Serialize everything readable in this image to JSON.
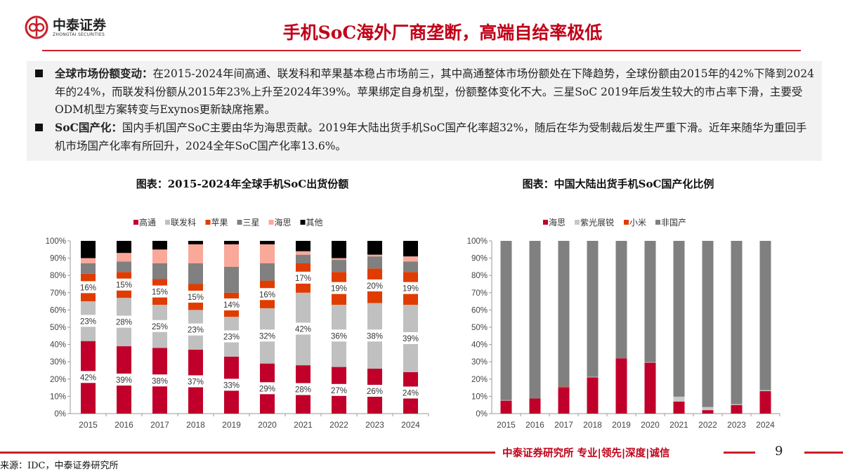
{
  "header": {
    "logo_cn": "中泰证券",
    "logo_en": "ZHONGTAI SECURITIES",
    "title": "手机SoC海外厂商垄断，高端自给率极低"
  },
  "summary": [
    {
      "label": "全球市场份额变动：",
      "text": "在2015-2024年间高通、联发科和苹果基本稳占市场前三，其中高通整体市场份额处在下降趋势，全球份额由2015年的42%下降到2024年的24%，而联发科份额从2015年23%上升至2024年39%。苹果绑定自身机型，份额整体变化不大。三星SoC 2019年后发生较大的市占率下滑，主要受ODM机型方案转变与Exynos更新缺席拖累。"
    },
    {
      "label": "SoC国产化：",
      "text": "国内手机国产SoC主要由华为海思贡献。2019年大陆出货手机SoC国产化率超32%，随后在华为受制裁后发生严重下滑。近年来随华为重回手机市场国产化率有所回升，2024全年SoC国产化率13.6%。"
    }
  ],
  "chart_data": [
    {
      "type": "bar",
      "stacked": true,
      "title": "图表：2015-2024年全球手机SoC出货份额",
      "categories": [
        "2015",
        "2016",
        "2017",
        "2018",
        "2019",
        "2020",
        "2021",
        "2022",
        "2023",
        "2024"
      ],
      "ylim": [
        0,
        100
      ],
      "yticks": [
        "0%",
        "10%",
        "20%",
        "30%",
        "40%",
        "50%",
        "60%",
        "70%",
        "80%",
        "90%",
        "100%"
      ],
      "legend_position": "top",
      "series": [
        {
          "name": "高通",
          "color": "#c0002a",
          "values": [
            42,
            39,
            38,
            37,
            33,
            29,
            28,
            27,
            26,
            24
          ],
          "labels": [
            "42%",
            "39%",
            "38%",
            "37%",
            "33%",
            "29%",
            "28%",
            "27%",
            "26%",
            "24%"
          ]
        },
        {
          "name": "联发科",
          "color": "#c0c0c0",
          "values": [
            23,
            28,
            25,
            23,
            23,
            32,
            42,
            36,
            38,
            39
          ],
          "labels": [
            "23%",
            "28%",
            "25%",
            "23%",
            "23%",
            "32%",
            "42%",
            "36%",
            "38%",
            "39%"
          ]
        },
        {
          "name": "苹果",
          "color": "#e03c00",
          "values": [
            16,
            15,
            15,
            15,
            14,
            16,
            17,
            19,
            20,
            19
          ],
          "labels": [
            "16%",
            "15%",
            "15%",
            "15%",
            "14%",
            "16%",
            "17%",
            "19%",
            "20%",
            "19%"
          ]
        },
        {
          "name": "三星",
          "color": "#808080",
          "values": [
            6,
            6,
            9,
            12,
            15,
            10,
            5,
            7,
            7,
            6
          ]
        },
        {
          "name": "海思",
          "color": "#f9a89a",
          "values": [
            3,
            5,
            8,
            11,
            13,
            11,
            2,
            1,
            1,
            3
          ]
        },
        {
          "name": "其他",
          "color": "#000000",
          "values": [
            10,
            7,
            5,
            2,
            2,
            2,
            6,
            10,
            8,
            9
          ]
        }
      ]
    },
    {
      "type": "bar",
      "stacked": true,
      "title": "图表：中国大陆出货手机SoC国产化比例",
      "categories": [
        "2015",
        "2016",
        "2017",
        "2018",
        "2019",
        "2020",
        "2021",
        "2022",
        "2023",
        "2024"
      ],
      "ylim": [
        0,
        100
      ],
      "yticks": [
        "0%",
        "10%",
        "20%",
        "30%",
        "40%",
        "50%",
        "60%",
        "70%",
        "80%",
        "90%",
        "100%"
      ],
      "legend_position": "top",
      "series": [
        {
          "name": "海思",
          "color": "#c0002a",
          "values": [
            7.5,
            8.8,
            15,
            21,
            32,
            29.5,
            7,
            2,
            5,
            13
          ]
        },
        {
          "name": "紫光展锐",
          "color": "#c8c8c8",
          "values": [
            0.3,
            0,
            0,
            0.3,
            0,
            0.3,
            2.8,
            1.8,
            0.5,
            0.6
          ]
        },
        {
          "name": "小米",
          "color": "#e03c00",
          "values": [
            0,
            0,
            0.6,
            0,
            0,
            0,
            0,
            0,
            0,
            0
          ]
        },
        {
          "name": "非国产",
          "color": "#808080",
          "values": [
            92.2,
            91.2,
            84.4,
            78.7,
            68,
            70.2,
            90.2,
            96.2,
            94.5,
            86.4
          ]
        }
      ]
    }
  ],
  "footer": {
    "slogan": "中泰证券研究所 专业|领先|深度|诚信",
    "page": "9",
    "source": "来源：IDC，中泰证券研究所"
  }
}
